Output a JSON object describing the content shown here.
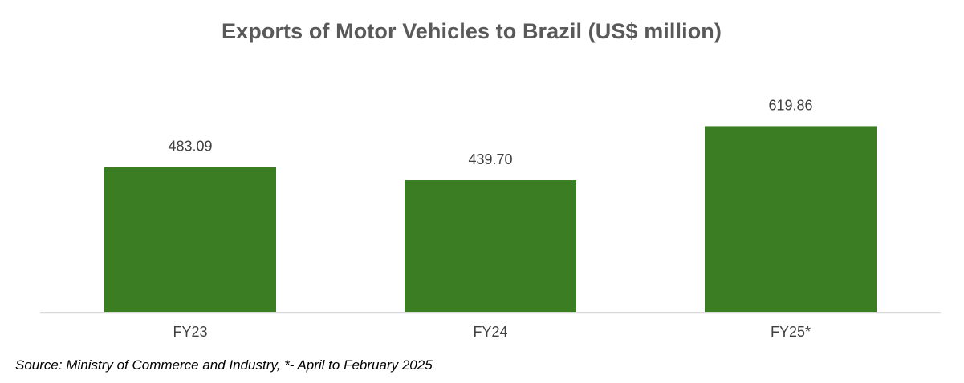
{
  "title": "Exports of Motor Vehicles to Brazil (US$ million)",
  "source_note": "Source: Ministry of Commerce and Industry, *- April to February 2025",
  "colors": {
    "bar": "#3b7d23",
    "axis": "#d9d9d9",
    "title": "#595959",
    "label": "#404040"
  },
  "chart_data": {
    "type": "bar",
    "title": "Exports of Motor Vehicles to Brazil (US$ million)",
    "categories": [
      "FY23",
      "FY24",
      "FY25*"
    ],
    "values": [
      483.09,
      439.7,
      619.86
    ],
    "value_labels": [
      "483.09",
      "439.70",
      "619.86"
    ],
    "xlabel": "",
    "ylabel": "",
    "ylim": [
      0,
      700
    ],
    "grid": false,
    "legend": "none"
  }
}
